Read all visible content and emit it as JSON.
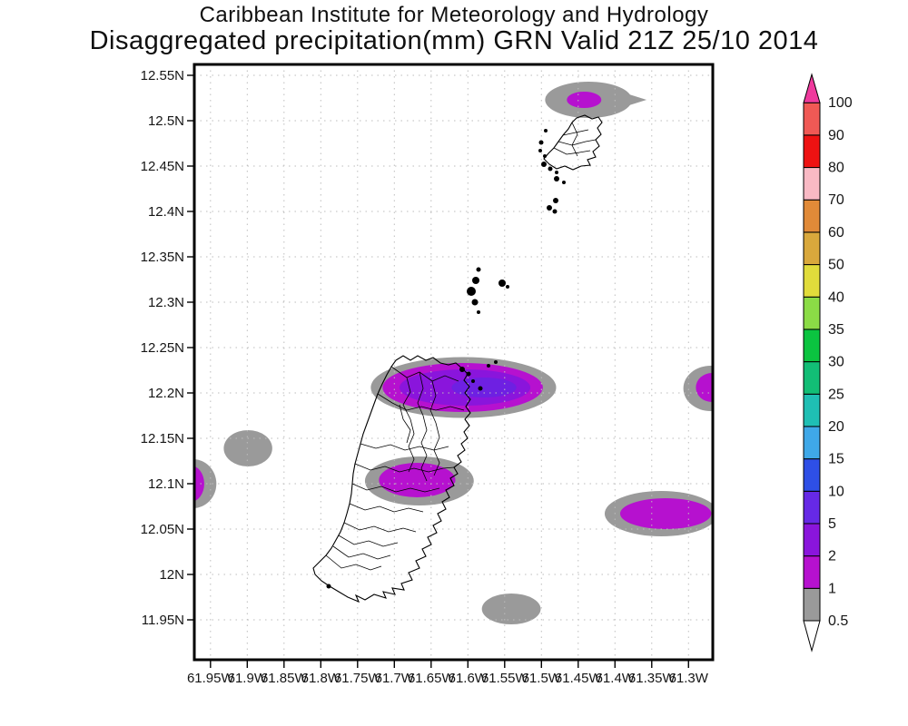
{
  "title": {
    "line1": "Caribbean Institute for Meteorology and Hydrology",
    "line2": "Disaggregated precipitation(mm) GRN Valid 21Z 25/10 2014"
  },
  "chart_data": {
    "type": "heatmap",
    "subtype": "shaded-contour precipitation map",
    "title": "Caribbean Institute for Meteorology and Hydrology",
    "subtitle": "Disaggregated precipitation(mm) GRN Valid 21Z 25/10 2014",
    "units": "mm",
    "grid": "dotted",
    "x_axis": {
      "tick_labels": [
        "61.95W",
        "61.9W",
        "61.85W",
        "61.8W",
        "61.75W",
        "61.7W",
        "61.65W",
        "61.6W",
        "61.55W",
        "61.5W",
        "61.45W",
        "61.4W",
        "61.35W",
        "61.3W"
      ],
      "tick_values_deg_west": [
        61.95,
        61.9,
        61.85,
        61.8,
        61.75,
        61.7,
        61.65,
        61.6,
        61.55,
        61.5,
        61.45,
        61.4,
        61.35,
        61.3
      ],
      "domain_deg_west_left_to_right": [
        61.972,
        61.267
      ]
    },
    "y_axis": {
      "tick_labels": [
        "12.55N",
        "12.5N",
        "12.45N",
        "12.4N",
        "12.35N",
        "12.3N",
        "12.25N",
        "12.2N",
        "12.15N",
        "12.1N",
        "12.05N",
        "12N",
        "11.95N"
      ],
      "tick_values_deg_north": [
        12.55,
        12.5,
        12.45,
        12.4,
        12.35,
        12.3,
        12.25,
        12.2,
        12.15,
        12.1,
        12.05,
        12.0,
        11.95
      ],
      "domain_deg_north_top_to_bottom": [
        12.562,
        11.906
      ]
    },
    "colorbar": {
      "position": "right",
      "labels": [
        "0.5",
        "1",
        "2",
        "5",
        "10",
        "15",
        "20",
        "25",
        "30",
        "35",
        "40",
        "50",
        "60",
        "70",
        "80",
        "90",
        "100"
      ],
      "levels": [
        0.5,
        1,
        2,
        5,
        10,
        15,
        20,
        25,
        30,
        35,
        40,
        50,
        60,
        70,
        80,
        90,
        100
      ],
      "segment_colors": [
        "#9A9A9A",
        "#B611CF",
        "#8A15DC",
        "#6629E6",
        "#2E4FE6",
        "#3FA8E8",
        "#1FBFB4",
        "#12BE76",
        "#0BC440",
        "#8BDC46",
        "#E1DC3B",
        "#D9A83C",
        "#E18A38",
        "#F9B9C4",
        "#EE1212",
        "#F05955"
      ],
      "over_color": "#EF3A9D",
      "under_color": "#FFFFFF"
    },
    "features": [
      {
        "id": "northeast-cell",
        "shape": "teardrop-east",
        "tail_to_lon_w": 61.357,
        "layers": [
          {
            "band": "0.5-1",
            "color": "#9A9A9A",
            "lon_w": 61.436,
            "lat_n": 12.523,
            "rx_deg": 0.059,
            "ry_deg": 0.02
          },
          {
            "band": "1-2",
            "color": "#B611CF",
            "lon_w": 61.442,
            "lat_n": 12.523,
            "rx_deg": 0.0235,
            "ry_deg": 0.009
          }
        ]
      },
      {
        "id": "central-band",
        "layers": [
          {
            "band": "0.5-1",
            "color": "#9A9A9A",
            "lon_w": 61.606,
            "lat_n": 12.206,
            "rx_deg": 0.126,
            "ry_deg": 0.0335
          },
          {
            "band": "1-2",
            "color": "#B611CF",
            "lon_w": 61.607,
            "lat_n": 12.206,
            "rx_deg": 0.109,
            "ry_deg": 0.027
          },
          {
            "band": "2-5",
            "color": "#8A15DC",
            "lon_w": 61.604,
            "lat_n": 12.206,
            "rx_deg": 0.089,
            "ry_deg": 0.02
          },
          {
            "band": "5-10",
            "color": "#6E20E2",
            "lon_w": 61.578,
            "lat_n": 12.206,
            "rx_deg": 0.044,
            "ry_deg": 0.011
          }
        ]
      },
      {
        "id": "east-edge-cell",
        "layers": [
          {
            "band": "0.5-1",
            "color": "#9A9A9A",
            "lon_w": 61.27,
            "lat_n": 12.205,
            "rx_deg": 0.037,
            "ry_deg": 0.025
          },
          {
            "band": "1-2",
            "color": "#B611CF",
            "lon_w": 61.268,
            "lat_n": 12.206,
            "rx_deg": 0.022,
            "ry_deg": 0.016
          }
        ]
      },
      {
        "id": "west-cell",
        "layers": [
          {
            "band": "0.5-1",
            "color": "#9A9A9A",
            "lon_w": 61.899,
            "lat_n": 12.139,
            "rx_deg": 0.033,
            "ry_deg": 0.02
          }
        ]
      },
      {
        "id": "west-edge-cell",
        "layers": [
          {
            "band": "0.5-1",
            "color": "#9A9A9A",
            "lon_w": 61.974,
            "lat_n": 12.1,
            "rx_deg": 0.032,
            "ry_deg": 0.027
          },
          {
            "band": "1-2",
            "color": "#B611CF",
            "lon_w": 61.977,
            "lat_n": 12.1,
            "rx_deg": 0.0185,
            "ry_deg": 0.02
          }
        ]
      },
      {
        "id": "grenada-central-cell",
        "layers": [
          {
            "band": "0.5-1",
            "color": "#9A9A9A",
            "lon_w": 61.666,
            "lat_n": 12.103,
            "rx_deg": 0.074,
            "ry_deg": 0.027
          },
          {
            "band": "1-2",
            "color": "#B611CF",
            "lon_w": 61.669,
            "lat_n": 12.104,
            "rx_deg": 0.052,
            "ry_deg": 0.019
          }
        ]
      },
      {
        "id": "southeast-cell",
        "layers": [
          {
            "band": "0.5-1",
            "color": "#9A9A9A",
            "lon_w": 61.337,
            "lat_n": 12.067,
            "rx_deg": 0.077,
            "ry_deg": 0.025
          },
          {
            "band": "1-2",
            "color": "#B611CF",
            "lon_w": 61.331,
            "lat_n": 12.067,
            "rx_deg": 0.062,
            "ry_deg": 0.017
          }
        ]
      },
      {
        "id": "south-cell",
        "layers": [
          {
            "band": "0.5-1",
            "color": "#9A9A9A",
            "lon_w": 61.541,
            "lat_n": 11.962,
            "rx_deg": 0.04,
            "ry_deg": 0.017
          }
        ]
      }
    ],
    "map_style": {
      "coastline_color": "#000000",
      "frame_color": "#000000",
      "grid_color": "#bdbdbd",
      "background": "#ffffff"
    }
  }
}
